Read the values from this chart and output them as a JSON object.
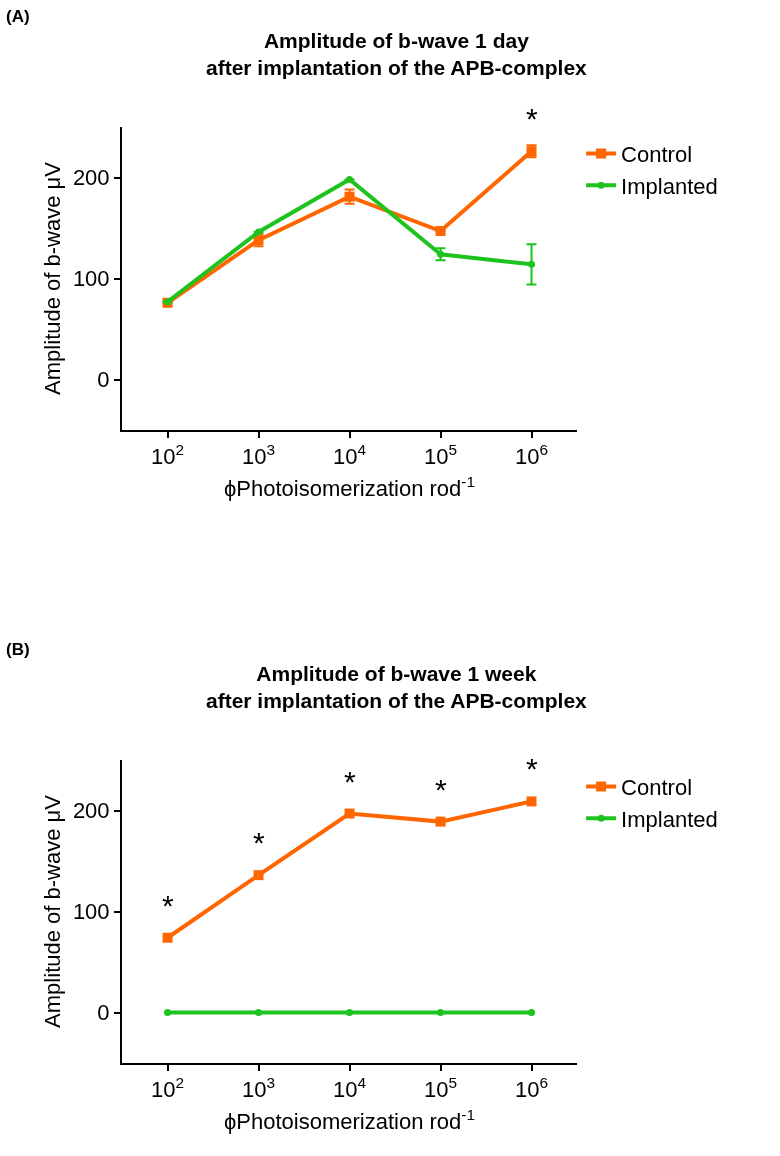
{
  "chart_data": [
    {
      "type": "line",
      "title": "Amplitude of b-wave 1 day\nafter implantation of the APB-complex",
      "xlabel": "ϕPhotoisomerization rod$^{-1}$",
      "ylabel": "Amplitude of b-wave μV",
      "x": [
        100,
        1000,
        10000,
        100000,
        1000000
      ],
      "log": "x",
      "xlim": [
        31.6,
        3160000
      ],
      "xticks": [
        {
          "value": 100,
          "label": "10$^{2}$"
        },
        {
          "value": 1000,
          "label": "10$^{3}$"
        },
        {
          "value": 10000,
          "label": "10$^{4}$"
        },
        {
          "value": 100000,
          "label": "10$^{5}$"
        },
        {
          "value": 1000000,
          "label": "10$^{6}$"
        }
      ],
      "ylim": [
        -50,
        250
      ],
      "yticks": [
        0,
        100,
        200
      ],
      "legend": "right",
      "line_style": "solid",
      "series": [
        {
          "name": "Control",
          "color": "#ff6600",
          "marker": "square",
          "values": [
            76,
            138,
            181,
            147,
            226
          ],
          "errors": [
            null,
            6,
            7,
            null,
            6
          ]
        },
        {
          "name": "Implanted",
          "color": "#1ec31e",
          "marker": "circle",
          "values": [
            77,
            146,
            198,
            124,
            114
          ],
          "errors": [
            null,
            null,
            null,
            6,
            20
          ]
        }
      ],
      "annotations": [
        "(A)",
        {
          "text": "*",
          "x": 1000000,
          "y": 226
        }
      ]
    },
    {
      "type": "line",
      "title": "Amplitude of b-wave 1 week\nafter implantation of the APB-complex",
      "xlabel": "ϕPhotoisomerization rod$^{-1}$",
      "ylabel": "Amplitude of b-wave μV",
      "x": [
        100,
        1000,
        10000,
        100000,
        1000000
      ],
      "log": "x",
      "xlim": [
        31.6,
        3160000
      ],
      "xticks": [
        {
          "value": 100,
          "label": "10$^{2}$"
        },
        {
          "value": 1000,
          "label": "10$^{3}$"
        },
        {
          "value": 10000,
          "label": "10$^{4}$"
        },
        {
          "value": 100000,
          "label": "10$^{5}$"
        },
        {
          "value": 1000000,
          "label": "10$^{6}$"
        }
      ],
      "ylim": [
        -50,
        250
      ],
      "yticks": [
        0,
        100,
        200
      ],
      "legend": "right",
      "line_style": "solid",
      "series": [
        {
          "name": "Control",
          "color": "#ff6600",
          "marker": "square",
          "values": [
            74,
            136,
            197,
            189,
            209
          ]
        },
        {
          "name": "Implanted",
          "color": "#1ec31e",
          "marker": "circle",
          "values": [
            0,
            0,
            0,
            0,
            0
          ]
        }
      ],
      "annotations": [
        "(B)",
        {
          "text": "*",
          "x": 100,
          "y": 74
        },
        {
          "text": "*",
          "x": 1000,
          "y": 136
        },
        {
          "text": "*",
          "x": 10000,
          "y": 197
        },
        {
          "text": "*",
          "x": 100000,
          "y": 189
        },
        {
          "text": "*",
          "x": 1000000,
          "y": 209
        }
      ]
    }
  ]
}
